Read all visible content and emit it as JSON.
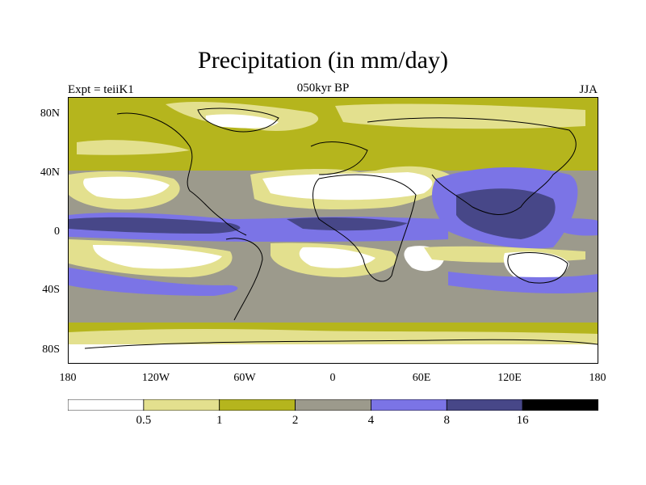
{
  "title": "Precipitation (in mm/day)",
  "subtitle_left": "Expt = teiiK1",
  "subtitle_center": "050kyr BP",
  "subtitle_right": "JJA",
  "lat_labels": [
    "80N",
    "40N",
    "0",
    "40S",
    "80S"
  ],
  "lon_labels": [
    "180",
    "120W",
    "60W",
    "0",
    "60E",
    "120E",
    "180"
  ],
  "colorbar": {
    "labels": [
      "0.5",
      "1",
      "2",
      "4",
      "8",
      "16"
    ],
    "colors": [
      "#ffffff",
      "#e3e08e",
      "#b5b51d",
      "#9c9a8c",
      "#7b74e6",
      "#474788",
      "#000000"
    ]
  },
  "map_colors": {
    "white": "#ffffff",
    "light_yellow": "#e3e08e",
    "olive": "#b5b51d",
    "gray": "#9c9a8c",
    "blue": "#7b74e6",
    "dark_blue": "#474788"
  }
}
